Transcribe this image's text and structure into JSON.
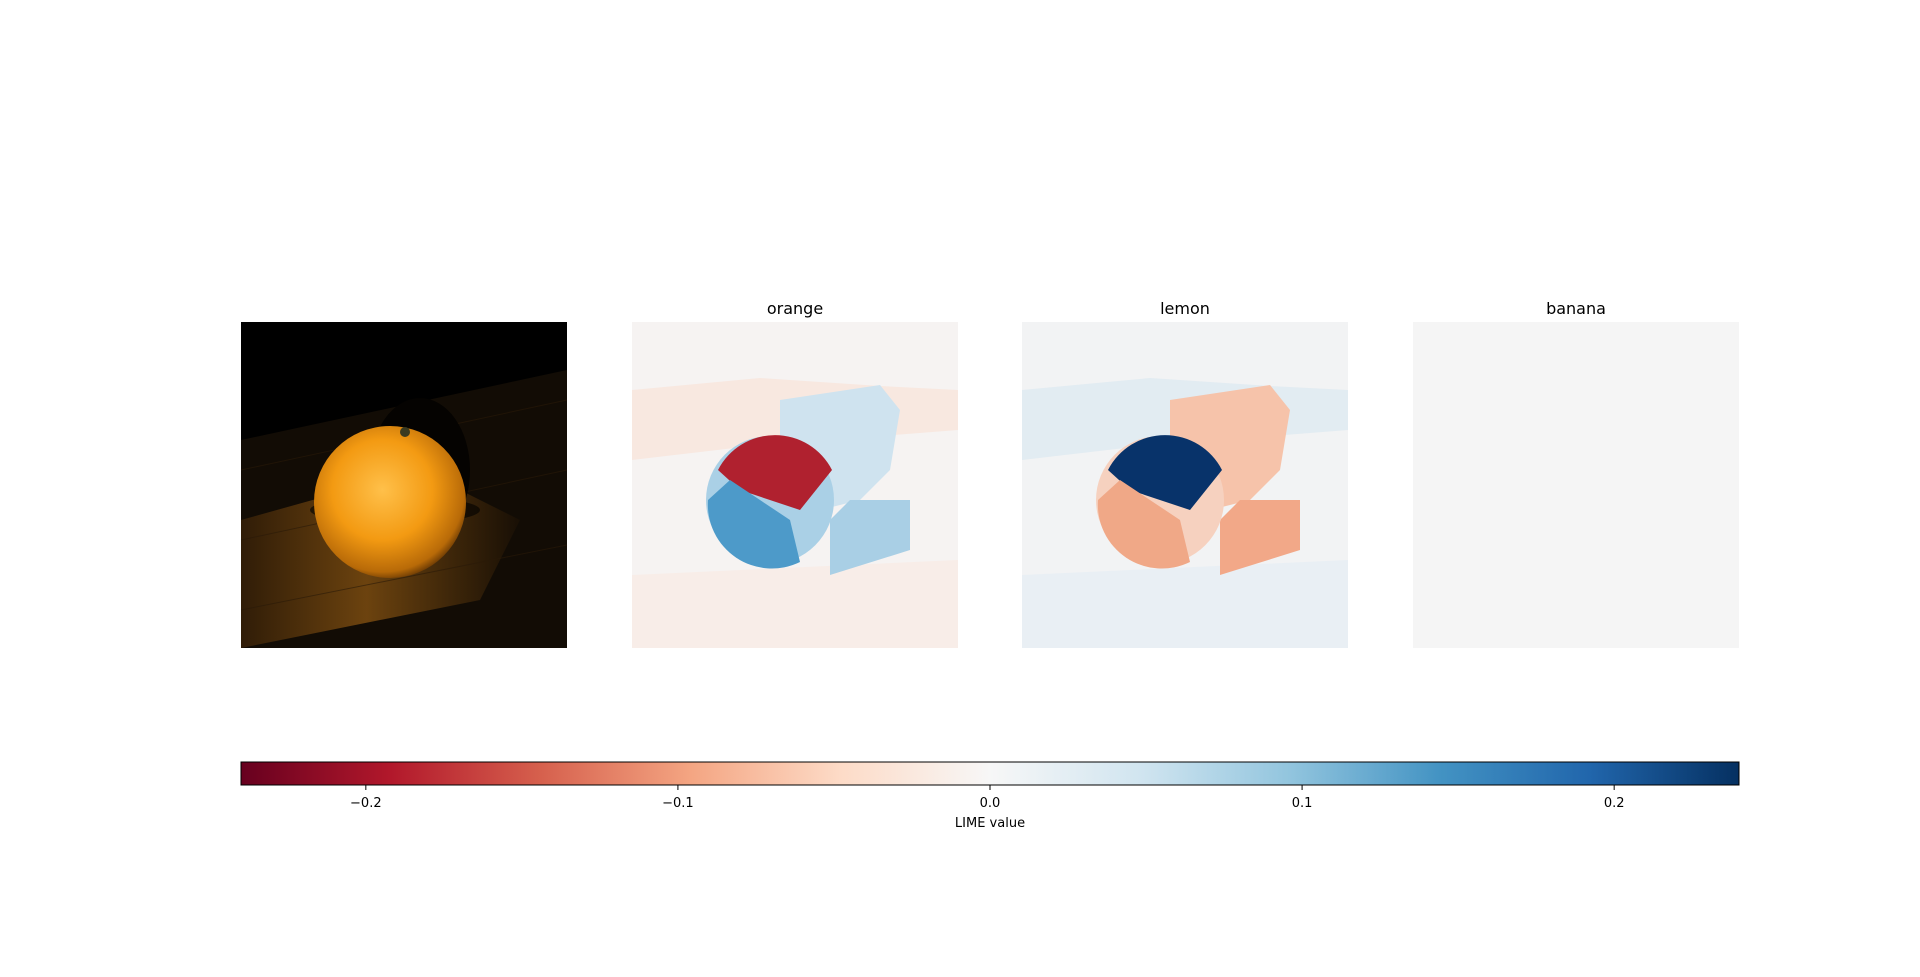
{
  "chart_data": {
    "type": "heatmap",
    "panels": [
      {
        "title": "",
        "kind": "photo",
        "content": "orange fruit on dark wooden table"
      },
      {
        "title": "orange",
        "kind": "lime-heatmap",
        "blob_upper_value": -0.2,
        "blob_lower_value": 0.14,
        "shadow_value": 0.07,
        "background_value": -0.02
      },
      {
        "title": "lemon",
        "kind": "lime-heatmap",
        "blob_upper_value": 0.24,
        "blob_lower_value": -0.08,
        "shadow_value": -0.07,
        "background_value": 0.02
      },
      {
        "title": "banana",
        "kind": "lime-heatmap",
        "uniform_value": 0.0
      }
    ],
    "colorbar": {
      "label": "LIME value",
      "colormap": "RdBu",
      "range": [
        -0.24,
        0.24
      ],
      "ticks": [
        -0.2,
        -0.1,
        0.0,
        0.1,
        0.2
      ],
      "tick_labels": [
        "−0.2",
        "−0.1",
        "0.0",
        "0.1",
        "0.2"
      ],
      "orientation": "horizontal"
    }
  }
}
